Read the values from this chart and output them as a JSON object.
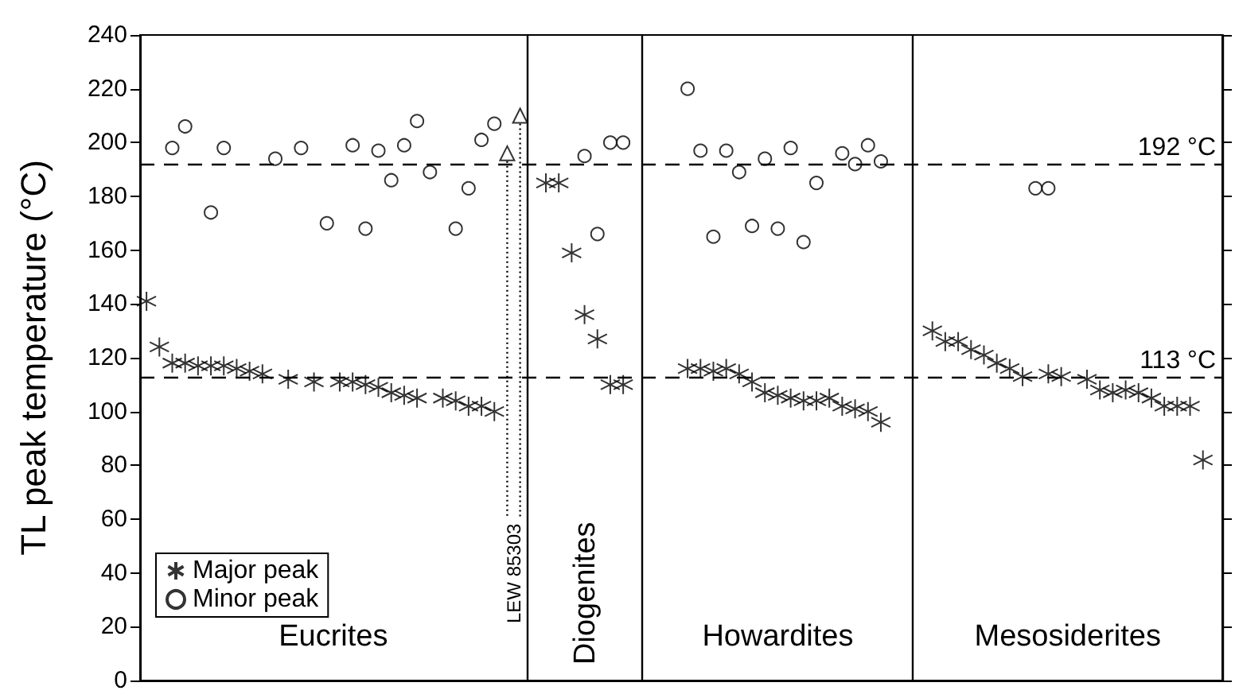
{
  "chart_data": {
    "type": "scatter",
    "ylabel": "TL peak temperature (°C)",
    "ylim": [
      0,
      240
    ],
    "yticks": [
      0,
      20,
      40,
      60,
      80,
      100,
      120,
      140,
      160,
      180,
      200,
      220,
      240
    ],
    "tick_labels": "y",
    "legend": "bottom left",
    "categories": [
      null,
      null,
      null,
      null,
      null,
      null,
      null,
      null,
      null,
      null,
      null,
      null,
      null,
      null,
      null,
      null,
      null,
      null,
      null,
      null,
      null,
      null,
      null,
      null,
      null,
      null,
      null,
      null,
      null,
      null,
      null,
      null,
      null,
      null,
      null,
      null,
      null,
      null,
      null,
      null,
      null,
      null,
      null,
      null,
      null,
      null,
      null,
      null,
      null,
      null,
      null,
      null,
      null,
      null,
      null,
      null,
      null,
      null,
      null,
      null,
      null,
      null,
      null,
      null,
      null,
      null,
      null,
      null,
      null,
      null,
      null,
      null,
      null,
      null,
      null,
      null,
      null,
      null,
      null,
      null,
      null,
      null,
      null,
      null
    ],
    "series": [
      {
        "name": "Major peak",
        "marker": "cross",
        "color": "#000000",
        "values": [
          141,
          124,
          118,
          118,
          117,
          117,
          117,
          116,
          115,
          114,
          null,
          112,
          null,
          111,
          null,
          111,
          111,
          110,
          109,
          107,
          106,
          105,
          null,
          105,
          104,
          102,
          102,
          100,
          null,
          null,
          null,
          185,
          185,
          159,
          136,
          127,
          110,
          110,
          null,
          null,
          null,
          null,
          116,
          116,
          115,
          116,
          114,
          111,
          107,
          106,
          105,
          104,
          104,
          105,
          102,
          101,
          100,
          96,
          null,
          null,
          null,
          130,
          126,
          126,
          123,
          121,
          118,
          116,
          113,
          null,
          114,
          113,
          null,
          112,
          108,
          107,
          108,
          107,
          105,
          102,
          102,
          102,
          82,
          null
        ]
      },
      {
        "name": "Minor peak",
        "marker": "circle",
        "color": "#000000",
        "values": [
          null,
          null,
          198,
          206,
          null,
          174,
          198,
          null,
          null,
          null,
          194,
          null,
          198,
          null,
          170,
          null,
          199,
          168,
          197,
          186,
          199,
          208,
          189,
          null,
          168,
          183,
          201,
          207,
          null,
          null,
          null,
          null,
          null,
          null,
          195,
          166,
          200,
          200,
          null,
          null,
          null,
          null,
          220,
          197,
          165,
          197,
          189,
          169,
          194,
          168,
          198,
          163,
          185,
          null,
          196,
          192,
          199,
          193,
          null,
          null,
          null,
          null,
          null,
          null,
          null,
          null,
          null,
          null,
          null,
          183,
          183,
          null,
          null,
          null,
          null,
          null,
          null,
          null,
          null,
          null,
          null,
          null,
          null,
          null
        ]
      },
      {
        "marker": "triangle",
        "color": "#000000",
        "values": [
          null,
          null,
          null,
          null,
          null,
          null,
          null,
          null,
          null,
          null,
          null,
          null,
          null,
          null,
          null,
          null,
          null,
          null,
          null,
          null,
          null,
          null,
          null,
          null,
          null,
          null,
          null,
          null,
          196,
          210,
          null,
          null,
          null,
          null,
          null,
          null,
          null,
          null,
          null,
          null,
          null,
          null,
          null,
          null,
          null,
          null,
          null,
          null,
          null,
          null,
          null,
          null,
          null,
          null,
          null,
          null,
          null,
          null,
          null,
          null,
          null,
          null,
          null,
          null,
          null,
          null,
          null,
          null,
          null,
          null,
          null,
          null,
          null,
          null,
          null,
          null,
          null,
          null,
          null,
          null,
          null,
          null,
          null,
          null
        ]
      }
    ],
    "ref_lines": [
      {
        "axis": "y",
        "value": 192,
        "label": "192 °C",
        "color": "#000000",
        "line_style": "dashed"
      },
      {
        "axis": "y",
        "value": 113,
        "label": "113 °C",
        "color": "#000000",
        "line_style": "dashed"
      }
    ],
    "annotations": [
      "Eucrites",
      "Diogenites",
      "Howardites",
      "Mesosiderites",
      "LEW 85303"
    ]
  }
}
